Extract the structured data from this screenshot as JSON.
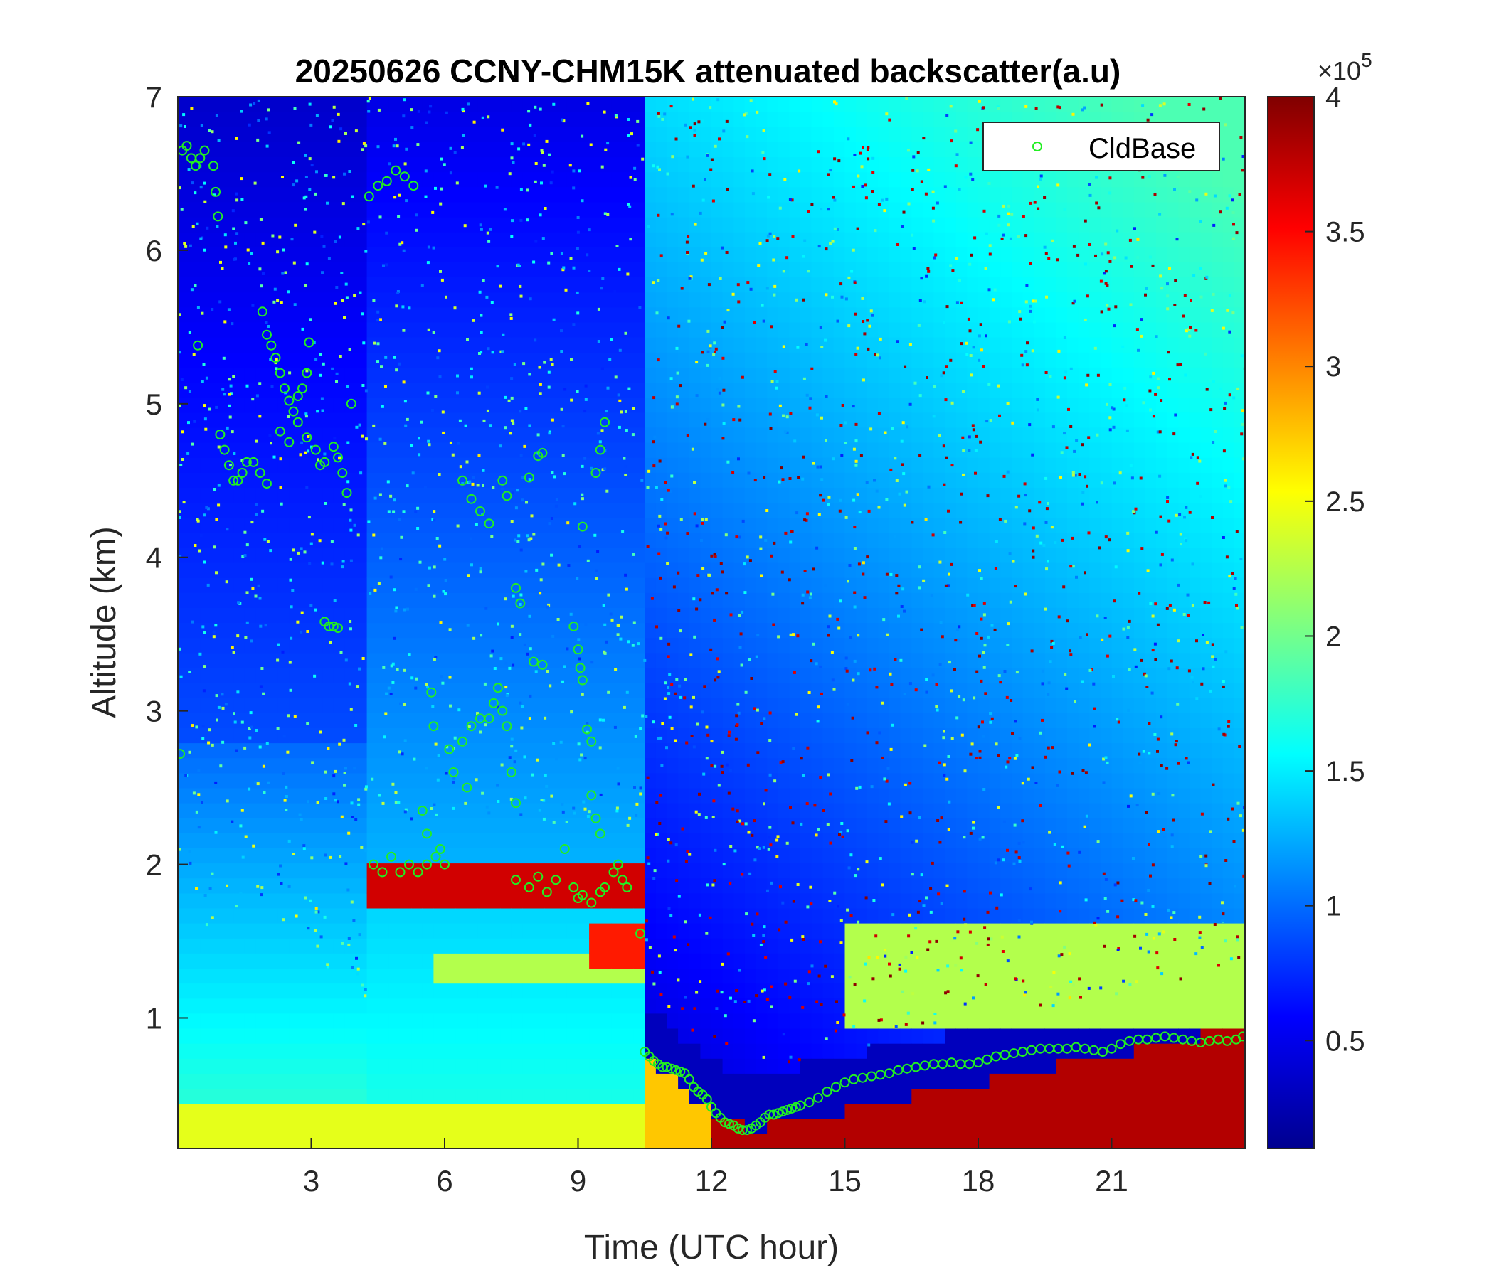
{
  "chart_data": {
    "type": "heatmap",
    "title": "20250626 CCNY-CHM15K attenuated backscatter(a.u)",
    "xlabel": "Time (UTC hour)",
    "ylabel": "Altitude (km)",
    "xlim": [
      0,
      24
    ],
    "ylim": [
      0.15,
      7
    ],
    "xticks": [
      3,
      6,
      9,
      12,
      15,
      18,
      21
    ],
    "yticks": [
      1,
      2,
      3,
      4,
      5,
      6,
      7
    ],
    "colorbar": {
      "colormap": "jet",
      "range": [
        0.1,
        4
      ],
      "exponent_label": "×10",
      "exponent_power": "5",
      "ticks": [
        0.5,
        1,
        1.5,
        2,
        2.5,
        3,
        3.5,
        4
      ],
      "tick_labels": [
        "0.5",
        "1",
        "1.5",
        "2",
        "2.5",
        "3",
        "3.5",
        "4"
      ]
    },
    "legend": {
      "entry": "CldBase",
      "placement": "top-right",
      "marker": "circle",
      "color": "#22ee22"
    },
    "series": [
      {
        "name": "CldBase",
        "points": [
          [
            0.05,
            2.72
          ],
          [
            0.1,
            6.65
          ],
          [
            0.2,
            6.68
          ],
          [
            0.3,
            6.6
          ],
          [
            0.4,
            6.55
          ],
          [
            0.5,
            6.6
          ],
          [
            0.6,
            6.65
          ],
          [
            0.8,
            6.55
          ],
          [
            0.85,
            6.38
          ],
          [
            0.9,
            6.22
          ],
          [
            0.45,
            5.38
          ],
          [
            0.95,
            4.8
          ],
          [
            1.05,
            4.7
          ],
          [
            1.15,
            4.6
          ],
          [
            1.25,
            4.5
          ],
          [
            1.35,
            4.5
          ],
          [
            1.45,
            4.55
          ],
          [
            1.55,
            4.62
          ],
          [
            1.7,
            4.62
          ],
          [
            1.85,
            4.55
          ],
          [
            2.0,
            4.48
          ],
          [
            1.9,
            5.6
          ],
          [
            2.0,
            5.45
          ],
          [
            2.1,
            5.38
          ],
          [
            2.2,
            5.3
          ],
          [
            2.3,
            5.2
          ],
          [
            2.4,
            5.1
          ],
          [
            2.5,
            5.02
          ],
          [
            2.6,
            4.95
          ],
          [
            2.7,
            5.05
          ],
          [
            2.8,
            5.1
          ],
          [
            2.9,
            5.2
          ],
          [
            2.95,
            5.4
          ],
          [
            2.3,
            4.82
          ],
          [
            2.5,
            4.75
          ],
          [
            2.7,
            4.88
          ],
          [
            2.9,
            4.78
          ],
          [
            3.1,
            4.7
          ],
          [
            3.2,
            4.6
          ],
          [
            3.3,
            4.62
          ],
          [
            3.5,
            4.72
          ],
          [
            3.6,
            4.65
          ],
          [
            3.7,
            4.55
          ],
          [
            3.8,
            4.42
          ],
          [
            3.9,
            5.0
          ],
          [
            3.3,
            3.58
          ],
          [
            3.4,
            3.55
          ],
          [
            3.5,
            3.55
          ],
          [
            3.6,
            3.54
          ],
          [
            4.3,
            6.35
          ],
          [
            4.5,
            6.42
          ],
          [
            4.7,
            6.45
          ],
          [
            4.9,
            6.52
          ],
          [
            5.1,
            6.48
          ],
          [
            5.3,
            6.42
          ],
          [
            4.4,
            2.0
          ],
          [
            4.6,
            1.95
          ],
          [
            4.8,
            2.05
          ],
          [
            5.0,
            1.95
          ],
          [
            5.2,
            2.0
          ],
          [
            5.4,
            1.95
          ],
          [
            5.6,
            2.0
          ],
          [
            5.8,
            2.05
          ],
          [
            6.0,
            2.0
          ],
          [
            5.5,
            2.35
          ],
          [
            5.6,
            2.2
          ],
          [
            5.7,
            3.12
          ],
          [
            5.75,
            2.9
          ],
          [
            5.9,
            2.1
          ],
          [
            6.1,
            2.75
          ],
          [
            6.2,
            2.6
          ],
          [
            6.4,
            2.8
          ],
          [
            6.5,
            2.5
          ],
          [
            6.6,
            2.9
          ],
          [
            6.8,
            2.95
          ],
          [
            7.0,
            2.95
          ],
          [
            7.1,
            3.05
          ],
          [
            7.2,
            3.15
          ],
          [
            7.3,
            3.0
          ],
          [
            7.4,
            2.9
          ],
          [
            7.5,
            2.6
          ],
          [
            7.6,
            2.4
          ],
          [
            6.4,
            4.5
          ],
          [
            6.6,
            4.38
          ],
          [
            6.8,
            4.3
          ],
          [
            7.0,
            4.22
          ],
          [
            7.3,
            4.5
          ],
          [
            7.4,
            4.4
          ],
          [
            7.6,
            3.8
          ],
          [
            7.7,
            3.7
          ],
          [
            8.0,
            3.32
          ],
          [
            8.2,
            3.3
          ],
          [
            7.9,
            4.52
          ],
          [
            8.1,
            4.66
          ],
          [
            8.2,
            4.68
          ],
          [
            8.9,
            3.55
          ],
          [
            9.0,
            3.4
          ],
          [
            9.05,
            3.28
          ],
          [
            9.1,
            3.2
          ],
          [
            9.2,
            2.88
          ],
          [
            9.3,
            2.8
          ],
          [
            9.1,
            4.2
          ],
          [
            9.4,
            4.55
          ],
          [
            9.5,
            4.7
          ],
          [
            9.6,
            4.88
          ],
          [
            7.6,
            1.9
          ],
          [
            7.9,
            1.85
          ],
          [
            8.1,
            1.92
          ],
          [
            8.3,
            1.82
          ],
          [
            8.5,
            1.9
          ],
          [
            8.7,
            2.1
          ],
          [
            8.9,
            1.85
          ],
          [
            9.0,
            1.78
          ],
          [
            9.1,
            1.8
          ],
          [
            9.3,
            1.75
          ],
          [
            9.5,
            1.82
          ],
          [
            9.6,
            1.85
          ],
          [
            9.8,
            1.95
          ],
          [
            9.9,
            2.0
          ],
          [
            10.0,
            1.9
          ],
          [
            10.1,
            1.85
          ],
          [
            9.3,
            2.45
          ],
          [
            9.4,
            2.3
          ],
          [
            9.5,
            2.2
          ],
          [
            10.4,
            1.55
          ],
          [
            10.5,
            0.78
          ],
          [
            10.6,
            0.75
          ],
          [
            10.7,
            0.72
          ],
          [
            10.8,
            0.7
          ],
          [
            10.9,
            0.68
          ],
          [
            11.0,
            0.68
          ],
          [
            11.1,
            0.67
          ],
          [
            11.2,
            0.66
          ],
          [
            11.3,
            0.65
          ],
          [
            11.4,
            0.64
          ],
          [
            11.5,
            0.6
          ],
          [
            11.6,
            0.55
          ],
          [
            11.7,
            0.52
          ],
          [
            11.8,
            0.5
          ],
          [
            11.9,
            0.47
          ],
          [
            12.0,
            0.42
          ],
          [
            12.1,
            0.38
          ],
          [
            12.2,
            0.35
          ],
          [
            12.3,
            0.32
          ],
          [
            12.4,
            0.31
          ],
          [
            12.5,
            0.3
          ],
          [
            12.6,
            0.28
          ],
          [
            12.7,
            0.27
          ],
          [
            12.8,
            0.27
          ],
          [
            12.9,
            0.28
          ],
          [
            13.0,
            0.3
          ],
          [
            13.1,
            0.32
          ],
          [
            13.2,
            0.35
          ],
          [
            13.3,
            0.37
          ],
          [
            13.4,
            0.37
          ],
          [
            13.5,
            0.38
          ],
          [
            13.6,
            0.39
          ],
          [
            13.7,
            0.4
          ],
          [
            13.8,
            0.41
          ],
          [
            13.9,
            0.42
          ],
          [
            14.0,
            0.43
          ],
          [
            14.2,
            0.45
          ],
          [
            14.4,
            0.48
          ],
          [
            14.6,
            0.52
          ],
          [
            14.8,
            0.55
          ],
          [
            15.0,
            0.58
          ],
          [
            15.2,
            0.6
          ],
          [
            15.4,
            0.61
          ],
          [
            15.6,
            0.62
          ],
          [
            15.8,
            0.63
          ],
          [
            16.0,
            0.64
          ],
          [
            16.2,
            0.66
          ],
          [
            16.4,
            0.67
          ],
          [
            16.6,
            0.68
          ],
          [
            16.8,
            0.69
          ],
          [
            17.0,
            0.7
          ],
          [
            17.2,
            0.7
          ],
          [
            17.4,
            0.71
          ],
          [
            17.6,
            0.7
          ],
          [
            17.8,
            0.7
          ],
          [
            18.0,
            0.71
          ],
          [
            18.2,
            0.73
          ],
          [
            18.4,
            0.75
          ],
          [
            18.6,
            0.76
          ],
          [
            18.8,
            0.77
          ],
          [
            19.0,
            0.78
          ],
          [
            19.2,
            0.79
          ],
          [
            19.4,
            0.8
          ],
          [
            19.6,
            0.8
          ],
          [
            19.8,
            0.8
          ],
          [
            20.0,
            0.8
          ],
          [
            20.2,
            0.81
          ],
          [
            20.4,
            0.8
          ],
          [
            20.6,
            0.79
          ],
          [
            20.8,
            0.78
          ],
          [
            21.0,
            0.8
          ],
          [
            21.2,
            0.83
          ],
          [
            21.4,
            0.85
          ],
          [
            21.6,
            0.86
          ],
          [
            21.8,
            0.86
          ],
          [
            22.0,
            0.87
          ],
          [
            22.2,
            0.88
          ],
          [
            22.4,
            0.87
          ],
          [
            22.6,
            0.86
          ],
          [
            22.8,
            0.85
          ],
          [
            23.0,
            0.84
          ],
          [
            23.2,
            0.85
          ],
          [
            23.4,
            0.86
          ],
          [
            23.6,
            0.85
          ],
          [
            23.8,
            0.86
          ],
          [
            23.95,
            0.88
          ]
        ]
      }
    ]
  }
}
